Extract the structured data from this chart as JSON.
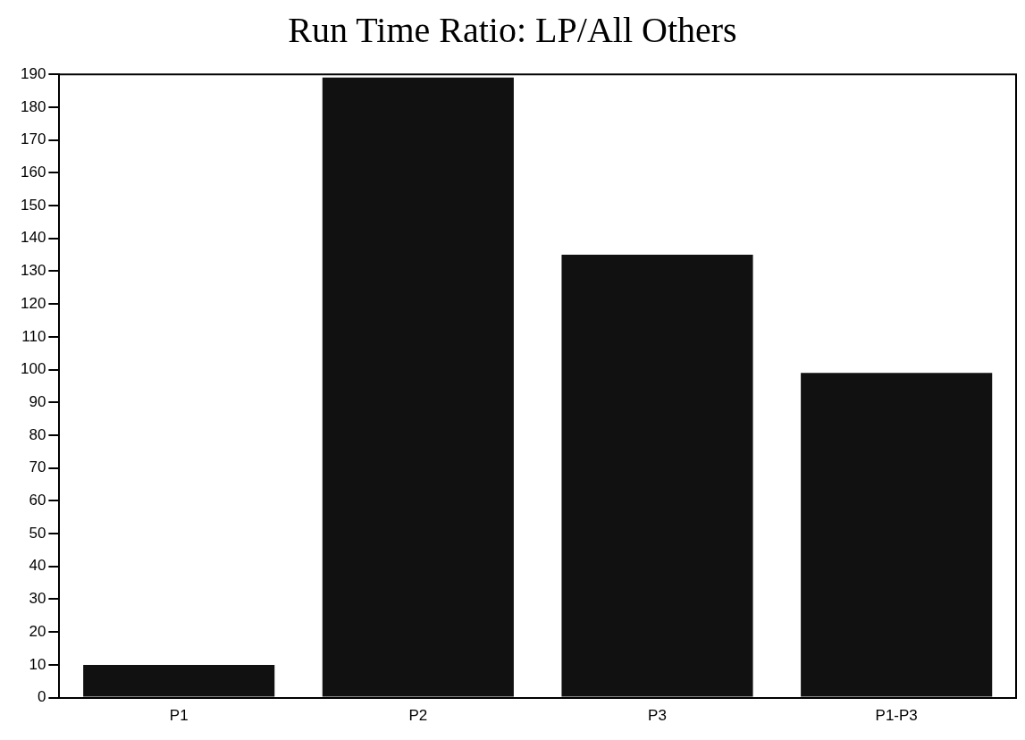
{
  "chart_data": {
    "type": "bar",
    "title": "Run Time Ratio: LP/All Others",
    "categories": [
      "P1",
      "P2",
      "P3",
      "P1-P3"
    ],
    "values": [
      10,
      189,
      135,
      99
    ],
    "color": "#111111",
    "ylim": [
      0,
      190
    ],
    "yticks": [
      0,
      10,
      20,
      30,
      40,
      50,
      60,
      70,
      80,
      90,
      100,
      110,
      120,
      130,
      140,
      150,
      160,
      170,
      180,
      190
    ],
    "grid": false,
    "legend": false
  }
}
